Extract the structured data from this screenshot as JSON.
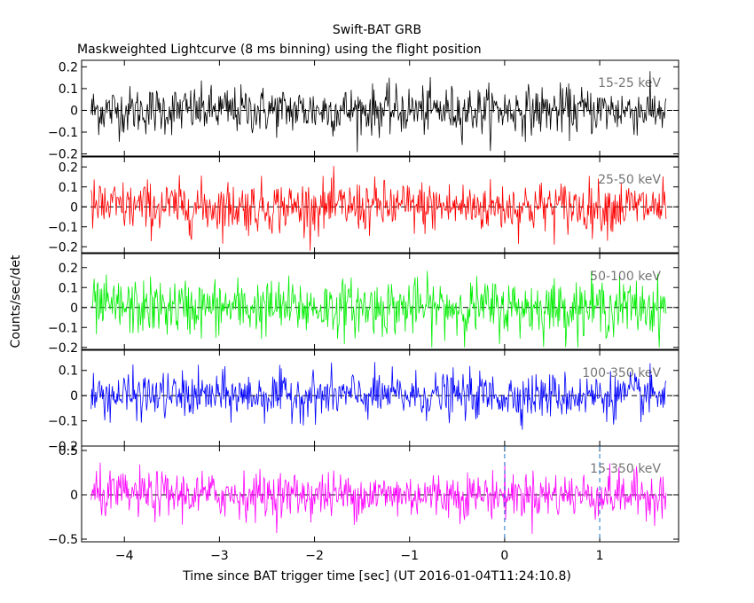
{
  "chart_data": {
    "type": "line",
    "title": "Swift-BAT GRB",
    "subtitle": "Maskweighted Lightcurve (8 ms binning) using the flight position",
    "xlabel": "Time since BAT trigger time [sec] (UT 2016-01-04T11:24:10.8)",
    "ylabel": "Counts/sec/det",
    "xlim": [
      -4.45,
      1.83
    ],
    "data_x_range": [
      -4.35,
      1.7
    ],
    "bin_width_s": 0.008,
    "x_ticks": [
      -4,
      -3,
      -2,
      -1,
      0,
      1
    ],
    "x_tick_labels": [
      "−4",
      "−3",
      "−2",
      "−1",
      "0",
      "1"
    ],
    "trigger_markers": [
      0,
      1
    ],
    "panels": [
      {
        "name": "15-25 keV",
        "color": "#000000",
        "ylim": [
          -0.21,
          0.23
        ],
        "y_ticks": [
          -0.2,
          -0.1,
          0,
          0.1,
          0.2
        ],
        "y_tick_labels": [
          "−0.2",
          "−0.1",
          "0",
          "0.1",
          "0.2"
        ],
        "noise_sd": 0.055,
        "value_range": [
          -0.2,
          0.2
        ]
      },
      {
        "name": "25-50 keV",
        "color": "#ff0000",
        "ylim": [
          -0.23,
          0.25
        ],
        "y_ticks": [
          -0.2,
          -0.1,
          0,
          0.1,
          0.2
        ],
        "y_tick_labels": [
          "−0.2",
          "−0.1",
          "0",
          "0.1",
          "0.2"
        ],
        "noise_sd": 0.065,
        "value_range": [
          -0.22,
          0.22
        ]
      },
      {
        "name": "50-100 keV",
        "color": "#00ee00",
        "ylim": [
          -0.21,
          0.27
        ],
        "y_ticks": [
          -0.2,
          -0.1,
          0,
          0.1,
          0.2
        ],
        "y_tick_labels": [
          "−0.2",
          "−0.1",
          "0",
          "0.1",
          "0.2"
        ],
        "noise_sd": 0.07,
        "value_range": [
          -0.2,
          0.25
        ]
      },
      {
        "name": "100-350 keV",
        "color": "#0000ff",
        "ylim": [
          -0.2,
          0.18
        ],
        "y_ticks": [
          -0.2,
          -0.1,
          0,
          0.1
        ],
        "y_tick_labels": [
          "−0.2",
          "−0.1",
          "0",
          "0.1"
        ],
        "noise_sd": 0.045,
        "value_range": [
          -0.17,
          0.17
        ]
      },
      {
        "name": "15-350 keV",
        "color": "#ff00ff",
        "ylim": [
          -0.53,
          0.55
        ],
        "y_ticks": [
          -0.5,
          0,
          0.5
        ],
        "y_tick_labels": [
          "−0.5",
          "0",
          "0.5"
        ],
        "noise_sd": 0.13,
        "value_range": [
          -0.5,
          0.5
        ]
      }
    ]
  }
}
